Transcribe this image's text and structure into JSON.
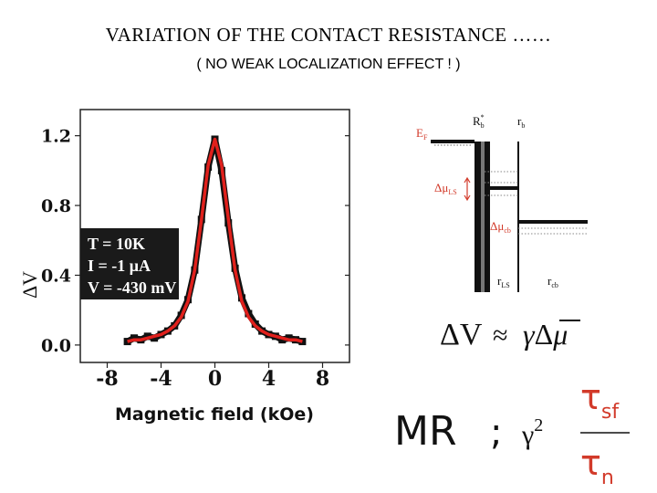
{
  "page": {
    "title": "VARIATION OF THE CONTACT RESISTANCE ……",
    "subtitle": "( NO WEAK LOCALIZATION EFFECT ! )"
  },
  "chart_data": {
    "type": "line",
    "xlabel": "Magnetic field (kOe)",
    "ylabel": "ΔV",
    "xlim": [
      -10,
      10
    ],
    "ylim": [
      -0.1,
      1.35
    ],
    "x_ticks": [
      "-8",
      "-4",
      "0",
      "4",
      "8"
    ],
    "x_tick_values": [
      -8,
      -4,
      0,
      4,
      8
    ],
    "y_ticks": [
      "0.0",
      "0.4",
      "0.8",
      "1.2"
    ],
    "y_tick_values": [
      0.0,
      0.4,
      0.8,
      1.2
    ],
    "grid": false,
    "annotation": [
      "T = 10K",
      "I = -1 μA",
      "V = -430 mV"
    ],
    "series": [
      {
        "kind": "data",
        "color": "#111111",
        "x": [
          -6.5,
          -6.0,
          -5.5,
          -5.0,
          -4.5,
          -4.0,
          -3.5,
          -3.0,
          -2.5,
          -2.0,
          -1.5,
          -1.0,
          -0.5,
          0.0,
          0.5,
          1.0,
          1.5,
          2.0,
          2.5,
          3.0,
          3.5,
          4.0,
          4.5,
          5.0,
          5.5,
          6.0,
          6.5
        ],
        "y": [
          0.02,
          0.04,
          0.03,
          0.05,
          0.04,
          0.06,
          0.08,
          0.11,
          0.17,
          0.26,
          0.43,
          0.72,
          1.02,
          1.18,
          1.0,
          0.7,
          0.44,
          0.27,
          0.18,
          0.12,
          0.08,
          0.06,
          0.05,
          0.03,
          0.04,
          0.03,
          0.02
        ]
      },
      {
        "kind": "fit",
        "color": "#e0201c",
        "x": [
          -6.5,
          -6.0,
          -5.5,
          -5.0,
          -4.5,
          -4.0,
          -3.5,
          -3.0,
          -2.5,
          -2.0,
          -1.5,
          -1.0,
          -0.5,
          0.0,
          0.5,
          1.0,
          1.5,
          2.0,
          2.5,
          3.0,
          3.5,
          4.0,
          4.5,
          5.0,
          5.5,
          6.0,
          6.5
        ],
        "y": [
          0.02,
          0.03,
          0.03,
          0.04,
          0.05,
          0.06,
          0.08,
          0.11,
          0.16,
          0.25,
          0.43,
          0.72,
          1.03,
          1.18,
          1.03,
          0.72,
          0.43,
          0.25,
          0.16,
          0.11,
          0.08,
          0.06,
          0.05,
          0.04,
          0.03,
          0.03,
          0.02
        ]
      }
    ]
  },
  "diagram": {
    "labels": {
      "ef": "E",
      "ef_sub": "F",
      "rb_star": "R",
      "rb_star_sub": "b",
      "rb_star_sup": "*",
      "rb": "r",
      "rb_sub": "b",
      "dmu_ls": "Δμ",
      "dmu_ls_sub": "LS",
      "dmu_cb": "Δμ",
      "dmu_cb_sub": "cb",
      "rls": "r",
      "rls_sub": "LS",
      "rcb": "r",
      "rcb_sub": "cb"
    },
    "colors": {
      "label": "#d23a2a",
      "structure": "#111111",
      "dotted": "#666666"
    }
  },
  "equations": {
    "relation_lhs": "ΔV",
    "relation_op": "≈",
    "relation_rhs_gamma": "γ",
    "relation_rhs_delta": "Δ",
    "relation_rhs_mu": "μ",
    "mr": "MR",
    "mr_sep": ";",
    "gamma": "γ",
    "gamma_exp": "2",
    "tau_top": "τ",
    "tau_top_sub": "sf",
    "tau_bottom": "τ",
    "tau_bottom_sub": "n"
  }
}
